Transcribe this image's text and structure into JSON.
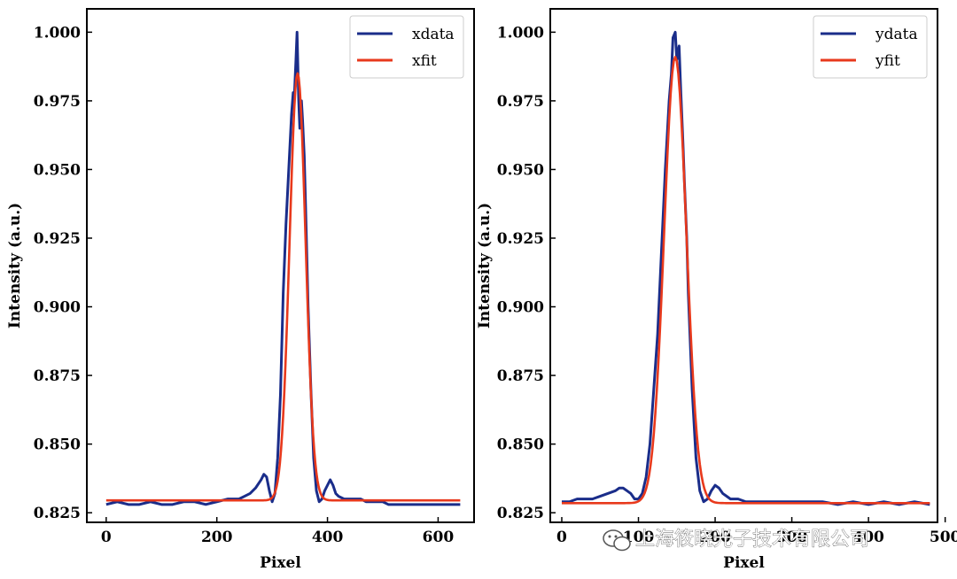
{
  "colors": {
    "data": "#1a2d8a",
    "fit": "#e8391c",
    "axis": "#000000"
  },
  "watermark": {
    "text": "上海筱晓光子技术有限公司",
    "icon": "wechat-icon"
  },
  "chart_data": [
    {
      "type": "line",
      "title": "",
      "xlabel": "Pixel",
      "ylabel": "Intensity (a.u.)",
      "xlim": [
        -35,
        665
      ],
      "ylim": [
        0.8215,
        1.0085
      ],
      "xticks": [
        0,
        200,
        400,
        600
      ],
      "yticks": [
        0.825,
        0.85,
        0.875,
        0.9,
        0.925,
        0.95,
        0.975,
        1.0
      ],
      "ytick_labels": [
        "0.825",
        "0.850",
        "0.875",
        "0.900",
        "0.925",
        "0.950",
        "0.975",
        "1.000"
      ],
      "legend": {
        "position": "top-right",
        "entries": [
          "xdata",
          "xfit"
        ]
      },
      "series": [
        {
          "name": "xdata",
          "role": "data",
          "x": [
            0,
            20,
            40,
            60,
            80,
            100,
            120,
            140,
            160,
            180,
            200,
            220,
            240,
            250,
            260,
            270,
            280,
            285,
            290,
            295,
            300,
            305,
            310,
            315,
            320,
            325,
            330,
            335,
            338,
            340,
            343,
            345,
            348,
            350,
            353,
            355,
            358,
            360,
            365,
            370,
            375,
            380,
            385,
            390,
            395,
            400,
            405,
            410,
            415,
            420,
            430,
            440,
            450,
            460,
            470,
            480,
            490,
            500,
            510,
            520,
            540,
            560,
            580,
            600,
            620,
            640
          ],
          "y": [
            0.828,
            0.829,
            0.828,
            0.828,
            0.829,
            0.828,
            0.828,
            0.829,
            0.829,
            0.828,
            0.829,
            0.83,
            0.83,
            0.831,
            0.832,
            0.834,
            0.837,
            0.839,
            0.838,
            0.833,
            0.829,
            0.832,
            0.845,
            0.868,
            0.905,
            0.93,
            0.95,
            0.97,
            0.978,
            0.976,
            0.99,
            1.0,
            0.975,
            0.965,
            0.975,
            0.968,
            0.955,
            0.94,
            0.9,
            0.87,
            0.845,
            0.833,
            0.829,
            0.83,
            0.833,
            0.835,
            0.837,
            0.835,
            0.832,
            0.831,
            0.83,
            0.83,
            0.83,
            0.83,
            0.829,
            0.829,
            0.829,
            0.829,
            0.828,
            0.828,
            0.828,
            0.828,
            0.828,
            0.828,
            0.828,
            0.828
          ]
        },
        {
          "name": "xfit",
          "role": "fit",
          "gaussian": {
            "baseline": 0.8295,
            "amplitude": 0.1555,
            "center": 346,
            "sigma": 14.5
          },
          "x_range": [
            0,
            640
          ]
        }
      ]
    },
    {
      "type": "line",
      "title": "",
      "xlabel": "Pixel",
      "ylabel": "Intensity (a.u.)",
      "xlim": [
        -15,
        490
      ],
      "ylim": [
        0.8215,
        1.0085
      ],
      "xticks": [
        0,
        100,
        200,
        300,
        400,
        500
      ],
      "yticks": [
        0.825,
        0.85,
        0.875,
        0.9,
        0.925,
        0.95,
        0.975,
        1.0
      ],
      "ytick_labels": [
        "0.825",
        "0.850",
        "0.875",
        "0.900",
        "0.925",
        "0.950",
        "0.975",
        "1.000"
      ],
      "legend": {
        "position": "top-right",
        "entries": [
          "ydata",
          "yfit"
        ]
      },
      "series": [
        {
          "name": "ydata",
          "role": "data",
          "x": [
            0,
            10,
            20,
            30,
            40,
            50,
            60,
            70,
            75,
            80,
            85,
            90,
            95,
            100,
            105,
            110,
            115,
            120,
            125,
            130,
            135,
            138,
            140,
            143,
            145,
            148,
            150,
            153,
            155,
            158,
            160,
            163,
            165,
            170,
            175,
            180,
            185,
            190,
            195,
            200,
            205,
            210,
            215,
            220,
            225,
            230,
            240,
            250,
            260,
            270,
            280,
            300,
            320,
            340,
            360,
            380,
            400,
            420,
            440,
            460,
            480
          ],
          "y": [
            0.829,
            0.829,
            0.83,
            0.83,
            0.83,
            0.831,
            0.832,
            0.833,
            0.834,
            0.834,
            0.833,
            0.832,
            0.83,
            0.83,
            0.832,
            0.838,
            0.85,
            0.87,
            0.89,
            0.92,
            0.95,
            0.965,
            0.975,
            0.985,
            0.998,
            1.0,
            0.99,
            0.995,
            0.98,
            0.96,
            0.945,
            0.925,
            0.905,
            0.87,
            0.845,
            0.833,
            0.829,
            0.83,
            0.833,
            0.835,
            0.834,
            0.832,
            0.831,
            0.83,
            0.83,
            0.83,
            0.829,
            0.829,
            0.829,
            0.829,
            0.829,
            0.829,
            0.829,
            0.829,
            0.828,
            0.829,
            0.828,
            0.829,
            0.828,
            0.829,
            0.828
          ]
        },
        {
          "name": "yfit",
          "role": "fit",
          "gaussian": {
            "baseline": 0.8285,
            "amplitude": 0.1625,
            "center": 148,
            "sigma": 14.5
          },
          "x_range": [
            0,
            480
          ]
        }
      ]
    }
  ]
}
